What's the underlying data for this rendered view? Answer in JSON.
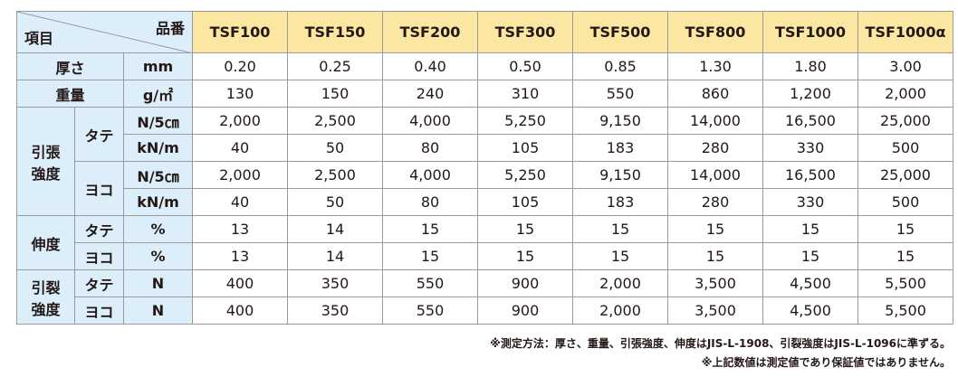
{
  "header": {
    "item_label": "項目",
    "number_label": "品番",
    "products": [
      "TSF100",
      "TSF150",
      "TSF200",
      "TSF300",
      "TSF500",
      "TSF800",
      "TSF1000",
      "TSF1000α"
    ]
  },
  "groups": [
    {
      "label_lines": [
        "厚さ"
      ],
      "rows": [
        {
          "unit": "mm",
          "values": [
            "0.20",
            "0.25",
            "0.40",
            "0.50",
            "0.85",
            "1.30",
            "1.80",
            "3.00"
          ]
        }
      ]
    },
    {
      "label_lines": [
        "重量"
      ],
      "rows": [
        {
          "unit": "g/㎡",
          "values": [
            "130",
            "150",
            "240",
            "310",
            "550",
            "860",
            "1,200",
            "2,000"
          ]
        }
      ]
    },
    {
      "label_lines": [
        "引張",
        "強度"
      ],
      "subgroups": [
        {
          "label": "タテ",
          "rows": [
            {
              "unit": "N/5㎝",
              "values": [
                "2,000",
                "2,500",
                "4,000",
                "5,250",
                "9,150",
                "14,000",
                "16,500",
                "25,000"
              ]
            },
            {
              "unit": "kN/m",
              "values": [
                "40",
                "50",
                "80",
                "105",
                "183",
                "280",
                "330",
                "500"
              ]
            }
          ]
        },
        {
          "label": "ヨコ",
          "rows": [
            {
              "unit": "N/5㎝",
              "values": [
                "2,000",
                "2,500",
                "4,000",
                "5,250",
                "9,150",
                "14,000",
                "16,500",
                "25,000"
              ]
            },
            {
              "unit": "kN/m",
              "values": [
                "40",
                "50",
                "80",
                "105",
                "183",
                "280",
                "330",
                "500"
              ]
            }
          ]
        }
      ]
    },
    {
      "label_lines": [
        "伸度"
      ],
      "subgroups": [
        {
          "label": "タテ",
          "rows": [
            {
              "unit": "%",
              "values": [
                "13",
                "14",
                "15",
                "15",
                "15",
                "15",
                "15",
                "15"
              ]
            }
          ]
        },
        {
          "label": "ヨコ",
          "rows": [
            {
              "unit": "%",
              "values": [
                "13",
                "14",
                "15",
                "15",
                "15",
                "15",
                "15",
                "15"
              ]
            }
          ]
        }
      ]
    },
    {
      "label_lines": [
        "引裂",
        "強度"
      ],
      "subgroups": [
        {
          "label": "タテ",
          "rows": [
            {
              "unit": "N",
              "values": [
                "400",
                "350",
                "550",
                "900",
                "2,000",
                "3,500",
                "4,500",
                "5,500"
              ]
            }
          ]
        },
        {
          "label": "ヨコ",
          "rows": [
            {
              "unit": "N",
              "values": [
                "400",
                "350",
                "550",
                "900",
                "2,000",
                "3,500",
                "4,500",
                "5,500"
              ]
            }
          ]
        }
      ]
    }
  ],
  "notes": [
    "※測定方法：厚さ、重量、引張強度、伸度はJIS-L-1908、引裂強度はJIS-L-1096に準ずる。",
    "※上記数値は測定値であり保証値ではありません。"
  ]
}
